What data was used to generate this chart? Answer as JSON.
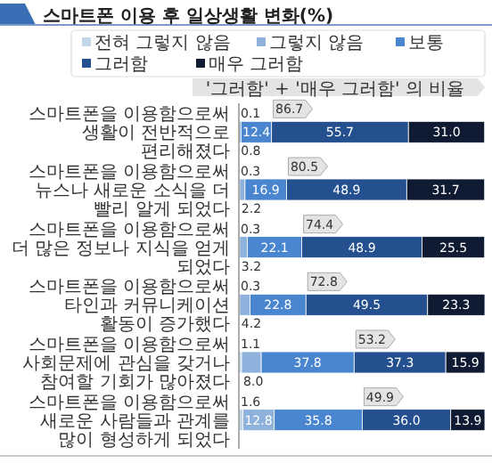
{
  "chart_data": {
    "type": "bar",
    "orientation": "horizontal",
    "stacked": true,
    "title": "스마트폰 이용 후 일상생활 변화(%)",
    "categories": [
      "스마트폰을 이용함으로써 생활이 전반적으로 편리해졌다",
      "스마트폰을 이용함으로써 뉴스나 새로운 소식을 더 빨리 알게 되었다",
      "스마트폰을 이용함으로써 더 많은 정보나 지식을 얻게 되었다",
      "스마트폰을 이용함으로써 타인과 커뮤니케이션 활동이 증가했다",
      "스마트폰을 이용함으로써 사회문제에 관심을 갖거나 참여할 기회가 많아졌다",
      "스마트폰을 이용함으로써 새로운 사람들과 관계를 많이 형성하게 되었다"
    ],
    "series": [
      {
        "name": "전혀 그렇지 않음",
        "color": "#c6d6ea",
        "values": [
          0.1,
          0.3,
          0.3,
          0.3,
          1.1,
          1.6
        ],
        "value_labels": [
          "0.1",
          "0.3",
          "0.3",
          "0.3",
          "1.1",
          "1.6"
        ]
      },
      {
        "name": "그렇지 않음",
        "color": "#8fb2dd",
        "values": [
          0.8,
          2.2,
          3.2,
          4.2,
          8.0,
          12.8
        ],
        "value_labels": [
          "0.8",
          "2.2",
          "3.2",
          "4.2",
          "8.0",
          "12.8"
        ]
      },
      {
        "name": "보통",
        "color": "#4a86d0",
        "values": [
          12.4,
          16.9,
          22.1,
          22.8,
          37.8,
          35.8
        ],
        "value_labels": [
          "12.4",
          "16.9",
          "22.1",
          "22.8",
          "37.8",
          "35.8"
        ]
      },
      {
        "name": "그러함",
        "color": "#24508f",
        "values": [
          55.7,
          48.9,
          48.9,
          49.5,
          37.3,
          36.0
        ],
        "value_labels": [
          "55.7",
          "48.9",
          "48.9",
          "49.5",
          "37.3",
          "36.0"
        ]
      },
      {
        "name": "매우 그러함",
        "color": "#0e1b33",
        "values": [
          31.0,
          31.7,
          25.5,
          23.3,
          15.9,
          13.9
        ],
        "value_labels": [
          "31.0",
          "31.7",
          "25.5",
          "23.3",
          "15.9",
          "13.9"
        ]
      }
    ],
    "legend": "top",
    "annotations": [
      "'그러함' + '매우 그러함' 의 비율",
      {
        "text": "86.7",
        "x": 13.3,
        "y": "스마트폰을 이용함으로써 생활이 전반적으로 편리해졌다"
      },
      {
        "text": "80.5",
        "x": 19.4,
        "y": "스마트폰을 이용함으로써 뉴스나 새로운 소식을 더 빨리 알게 되었다"
      },
      {
        "text": "74.4",
        "x": 25.6,
        "y": "스마트폰을 이용함으로써 더 많은 정보나 지식을 얻게 되었다"
      },
      {
        "text": "72.8",
        "x": 27.3,
        "y": "스마트폰을 이용함으로써 타인과 커뮤니케이션 활동이 증가했다"
      },
      {
        "text": "53.2",
        "x": 46.9,
        "y": "스마트폰을 이용함으로써 사회문제에 관심을 갖거나 참여할 기회가 많아졌다"
      },
      {
        "text": "49.9",
        "x": 50.2,
        "y": "스마트폰을 이용함으로써 새로운 사람들과 관계를 많이 형성하게 되었다"
      }
    ]
  }
}
